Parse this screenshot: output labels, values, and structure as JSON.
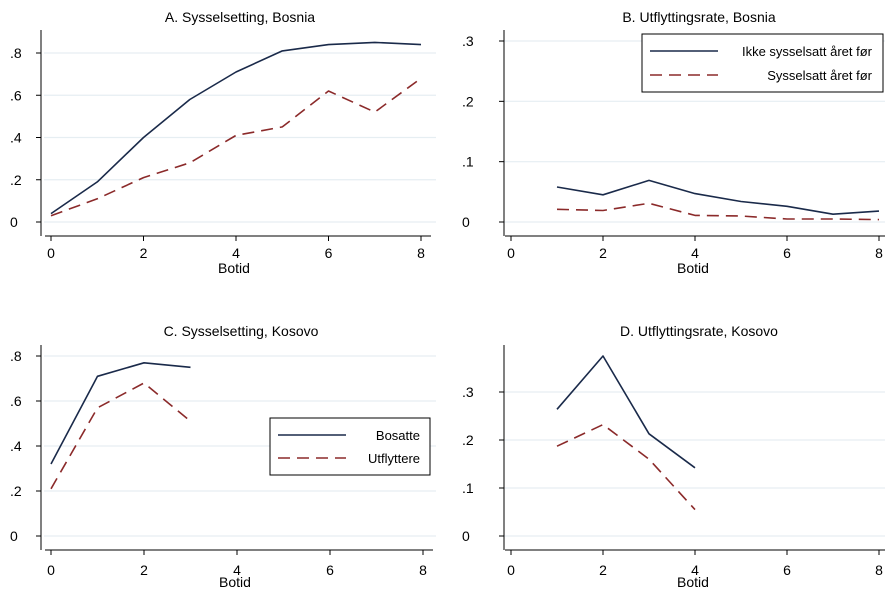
{
  "chart_data": [
    {
      "type": "line",
      "title": "A. Sysselsetting, Bosnia",
      "xlabel": "Botid",
      "ylabel": "",
      "xlim": [
        0,
        8
      ],
      "ylim": [
        0,
        0.9
      ],
      "xticks": [
        0,
        2,
        4,
        6,
        8
      ],
      "xtick_labels": [
        "0",
        "2",
        "4",
        "6",
        "8"
      ],
      "yticks": [
        0,
        0.2,
        0.4,
        0.6,
        0.8
      ],
      "ytick_labels": [
        "0",
        ".2",
        ".4",
        ".6",
        ".8"
      ],
      "grid": true,
      "legend": null,
      "series": [
        {
          "color": "#1a2a4a",
          "dash": "solid",
          "x": [
            0,
            1,
            2,
            3,
            4,
            5,
            6,
            7,
            8
          ],
          "y": [
            0.04,
            0.19,
            0.4,
            0.58,
            0.71,
            0.81,
            0.84,
            0.85,
            0.84
          ]
        },
        {
          "color": "#8b2a2a",
          "dash": "dashed",
          "x": [
            0,
            1,
            2,
            3,
            4,
            5,
            6,
            7,
            8
          ],
          "y": [
            0.03,
            0.11,
            0.21,
            0.28,
            0.41,
            0.45,
            0.62,
            0.52,
            0.68
          ]
        }
      ]
    },
    {
      "type": "line",
      "title": "B. Utflyttingsrate, Bosnia",
      "xlabel": "Botid",
      "ylabel": "",
      "xlim": [
        0,
        8
      ],
      "ylim": [
        0,
        0.31
      ],
      "xticks": [
        0,
        2,
        4,
        6,
        8
      ],
      "xtick_labels": [
        "0",
        "2",
        "4",
        "6",
        "8"
      ],
      "yticks": [
        0,
        0.1,
        0.2,
        0.3
      ],
      "ytick_labels": [
        "0",
        ".1",
        ".2",
        ".3"
      ],
      "grid": true,
      "legend": {
        "position": "top-right",
        "entries": [
          "Ikke sysselsatt året før",
          "Sysselsatt året før"
        ]
      },
      "series": [
        {
          "name": "Ikke sysselsatt året før",
          "color": "#1a2a4a",
          "dash": "solid",
          "x": [
            1,
            2,
            3,
            4,
            5,
            6,
            7,
            8
          ],
          "y": [
            0.058,
            0.045,
            0.069,
            0.047,
            0.034,
            0.026,
            0.013,
            0.018
          ]
        },
        {
          "name": "Sysselsatt året før",
          "color": "#8b2a2a",
          "dash": "dashed",
          "x": [
            1,
            2,
            3,
            4,
            5,
            6,
            7,
            8
          ],
          "y": [
            0.021,
            0.019,
            0.031,
            0.011,
            0.01,
            0.005,
            0.005,
            0.004
          ]
        }
      ]
    },
    {
      "type": "line",
      "title": "C. Sysselsetting, Kosovo",
      "xlabel": "Botid",
      "ylabel": "",
      "xlim": [
        0,
        8
      ],
      "ylim": [
        0,
        0.85
      ],
      "xticks": [
        0,
        2,
        4,
        6,
        8
      ],
      "xtick_labels": [
        "0",
        "2",
        "4",
        "6",
        "8"
      ],
      "yticks": [
        0,
        0.2,
        0.4,
        0.6,
        0.8
      ],
      "ytick_labels": [
        "0",
        ".2",
        ".4",
        ".6",
        ".8"
      ],
      "grid": true,
      "legend": {
        "position": "middle-right",
        "entries": [
          "Bosatte",
          "Utflyttere"
        ]
      },
      "series": [
        {
          "name": "Bosatte",
          "color": "#1a2a4a",
          "dash": "solid",
          "x": [
            0,
            1,
            2,
            3
          ],
          "y": [
            0.32,
            0.71,
            0.77,
            0.75
          ]
        },
        {
          "name": "Utflyttere",
          "color": "#8b2a2a",
          "dash": "dashed",
          "x": [
            0,
            1,
            2,
            3
          ],
          "y": [
            0.21,
            0.57,
            0.68,
            0.51
          ]
        }
      ]
    },
    {
      "type": "line",
      "title": "D. Utflyttingsrate, Kosovo",
      "xlabel": "Botid",
      "ylabel": "",
      "xlim": [
        0,
        8
      ],
      "ylim": [
        0,
        0.4
      ],
      "xticks": [
        0,
        2,
        4,
        6,
        8
      ],
      "xtick_labels": [
        "0",
        "2",
        "4",
        "6",
        "8"
      ],
      "yticks": [
        0,
        0.1,
        0.2,
        0.3
      ],
      "ytick_labels": [
        "0",
        ".1",
        ".2",
        ".3"
      ],
      "grid": true,
      "legend": null,
      "series": [
        {
          "color": "#1a2a4a",
          "dash": "solid",
          "x": [
            1,
            2,
            3,
            4
          ],
          "y": [
            0.264,
            0.375,
            0.213,
            0.142
          ]
        },
        {
          "color": "#8b2a2a",
          "dash": "dashed",
          "x": [
            1,
            2,
            3,
            4
          ],
          "y": [
            0.187,
            0.232,
            0.16,
            0.055
          ]
        }
      ]
    }
  ]
}
